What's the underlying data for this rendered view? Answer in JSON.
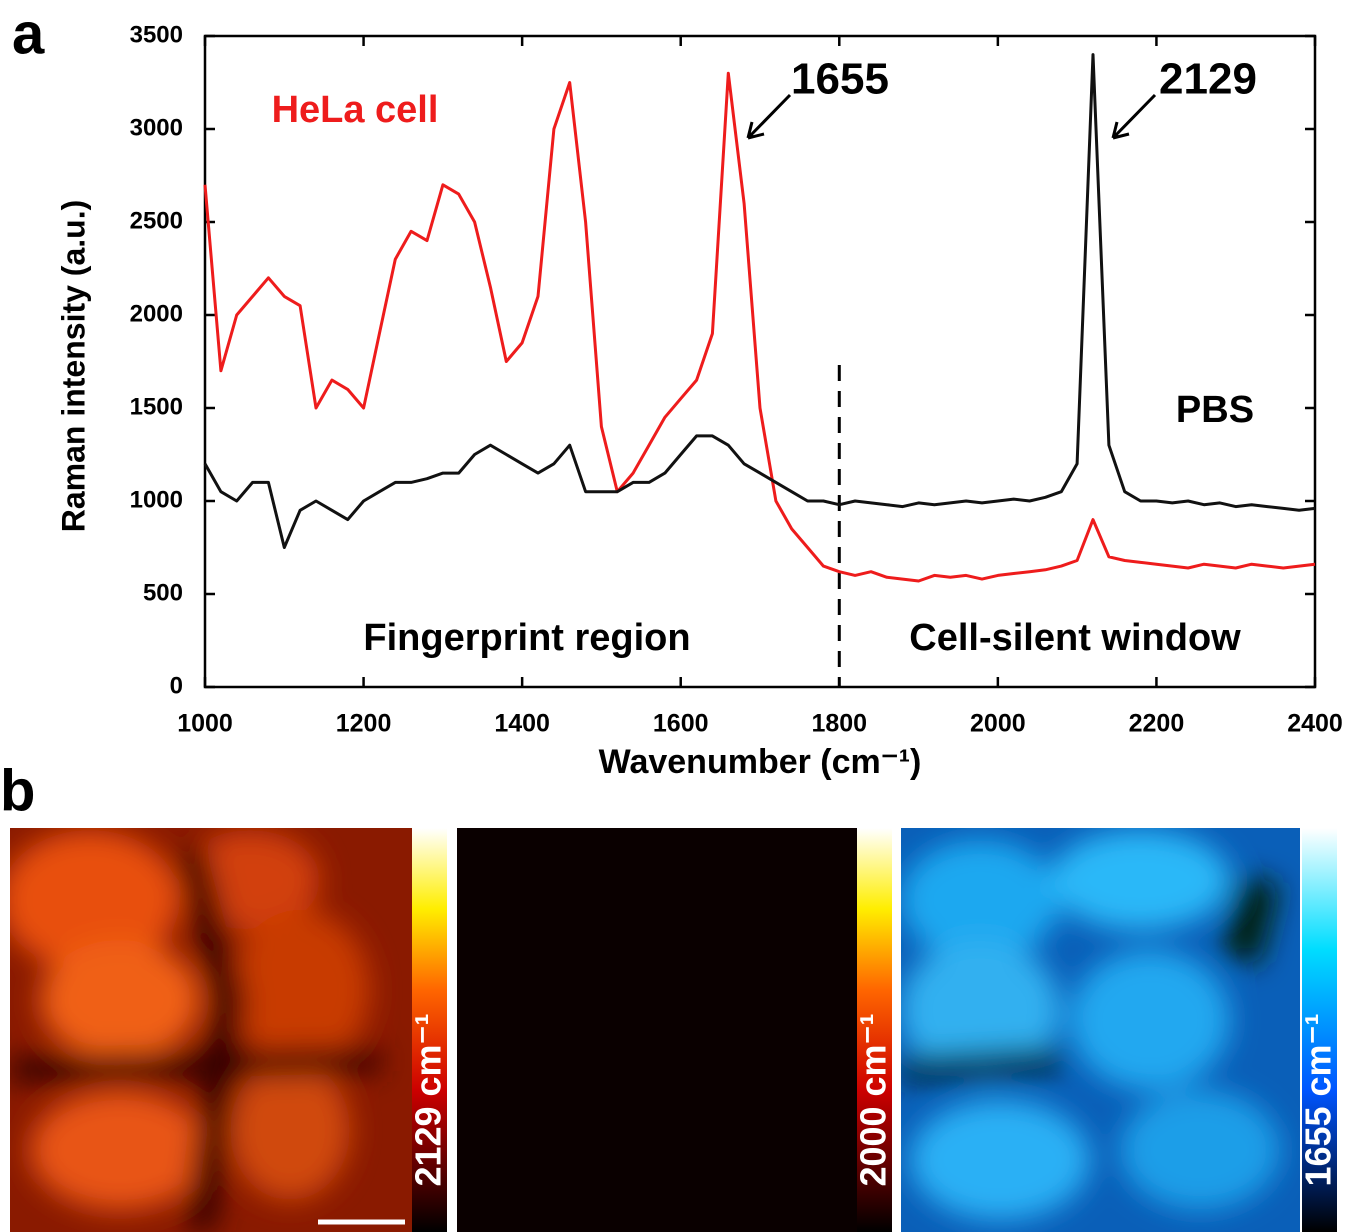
{
  "chart_data": {
    "type": "line",
    "panel_label": "a",
    "x_label": "Wavenumber (cm⁻¹)",
    "y_label": "Raman intensity (a.u.)",
    "x": [
      1000,
      1020,
      1040,
      1060,
      1080,
      1100,
      1120,
      1140,
      1160,
      1180,
      1200,
      1220,
      1240,
      1260,
      1280,
      1300,
      1320,
      1340,
      1360,
      1380,
      1400,
      1420,
      1440,
      1460,
      1480,
      1500,
      1520,
      1540,
      1560,
      1580,
      1600,
      1620,
      1640,
      1660,
      1680,
      1700,
      1720,
      1740,
      1760,
      1780,
      1800,
      1820,
      1840,
      1860,
      1880,
      1900,
      1920,
      1940,
      1960,
      1980,
      2000,
      2020,
      2040,
      2060,
      2080,
      2100,
      2120,
      2140,
      2160,
      2180,
      2200,
      2220,
      2240,
      2260,
      2280,
      2300,
      2320,
      2340,
      2360,
      2380,
      2400
    ],
    "series": [
      {
        "name": "HeLa cell",
        "color": "#ee1c1c",
        "values": [
          2700,
          1700,
          2000,
          2100,
          2200,
          2100,
          2050,
          1500,
          1650,
          1600,
          1500,
          1900,
          2300,
          2450,
          2400,
          2700,
          2650,
          2500,
          2150,
          1750,
          1850,
          2100,
          3000,
          3250,
          2500,
          1400,
          1050,
          1150,
          1300,
          1450,
          1550,
          1650,
          1900,
          3300,
          2600,
          1500,
          1000,
          850,
          750,
          650,
          620,
          600,
          620,
          590,
          580,
          570,
          600,
          590,
          600,
          580,
          600,
          610,
          620,
          630,
          650,
          680,
          900,
          700,
          680,
          670,
          660,
          650,
          640,
          660,
          650,
          640,
          660,
          650,
          640,
          650,
          660
        ]
      },
      {
        "name": "PBS",
        "color": "#111111",
        "values": [
          1200,
          1050,
          1000,
          1100,
          1100,
          750,
          950,
          1000,
          950,
          900,
          1000,
          1050,
          1100,
          1100,
          1120,
          1150,
          1150,
          1250,
          1300,
          1250,
          1200,
          1150,
          1200,
          1300,
          1050,
          1050,
          1050,
          1100,
          1100,
          1150,
          1250,
          1350,
          1350,
          1300,
          1200,
          1150,
          1100,
          1050,
          1000,
          1000,
          980,
          1000,
          990,
          980,
          970,
          990,
          980,
          990,
          1000,
          990,
          1000,
          1010,
          1000,
          1020,
          1050,
          1200,
          3400,
          1300,
          1050,
          1000,
          1000,
          990,
          1000,
          980,
          990,
          970,
          980,
          970,
          960,
          950,
          960
        ]
      }
    ],
    "xlim": [
      1000,
      2400
    ],
    "xticks": [
      1000,
      1200,
      1400,
      1600,
      1800,
      2000,
      2200,
      2400
    ],
    "ylim": [
      0,
      3500
    ],
    "yticks": [
      0,
      500,
      1000,
      1500,
      2000,
      2500,
      3000,
      3500
    ],
    "divider_x": 1800,
    "annotations": [
      "1655",
      "2129",
      "Fingerprint region",
      "Cell-silent window"
    ]
  },
  "panel_b": {
    "label": "b",
    "images": [
      {
        "colorbar_label": "2129 cm⁻¹"
      },
      {
        "colorbar_label": "2000 cm⁻¹"
      },
      {
        "colorbar_label": "1655 cm⁻¹"
      }
    ]
  }
}
